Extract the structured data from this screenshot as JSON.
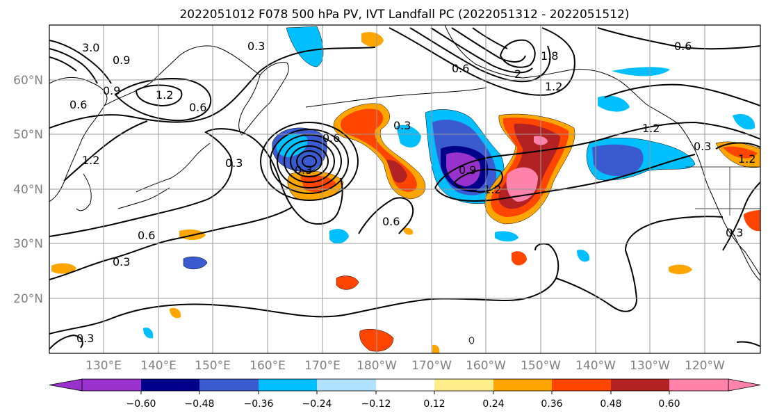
{
  "title": "2022051012 F078 500 hPa PV, IVT Landfall PC (2022051312 - 2022051512)",
  "lat_ticks": [
    "60°N",
    "50°N",
    "40°N",
    "30°N",
    "20°N"
  ],
  "lon_ticks": [
    "130°E",
    "140°E",
    "150°E",
    "160°E",
    "170°E",
    "180°W",
    "170°W",
    "160°W",
    "150°W",
    "140°W",
    "130°W",
    "120°W"
  ],
  "colorbar": {
    "colors": [
      "#9932CC",
      "#00008B",
      "#3A5BCF",
      "#00BFFF",
      "#B0E2FF",
      "#FFFFFF",
      "#FFEC8B",
      "#FFA500",
      "#FF4500",
      "#B22222",
      "#FF82AB"
    ],
    "ticks": [
      "−0.60",
      "−0.48",
      "−0.36",
      "−0.24",
      "−0.12",
      "0.12",
      "0.24",
      "0.36",
      "0.48",
      "0.60"
    ]
  },
  "contour_labels": [
    "3.0",
    "0.9",
    "0.3",
    "1.2",
    "0.6",
    "0.9",
    "1.2",
    "0.6",
    "0.3",
    "0.6",
    "0.3",
    "0.6",
    "0.3",
    "0.9",
    "1.2",
    "0.6",
    "0.6",
    "1.8",
    "1.2",
    "2",
    "0.6",
    "1.2",
    "0.3",
    "0.3",
    "1.2",
    "0.3",
    "0.3"
  ]
}
